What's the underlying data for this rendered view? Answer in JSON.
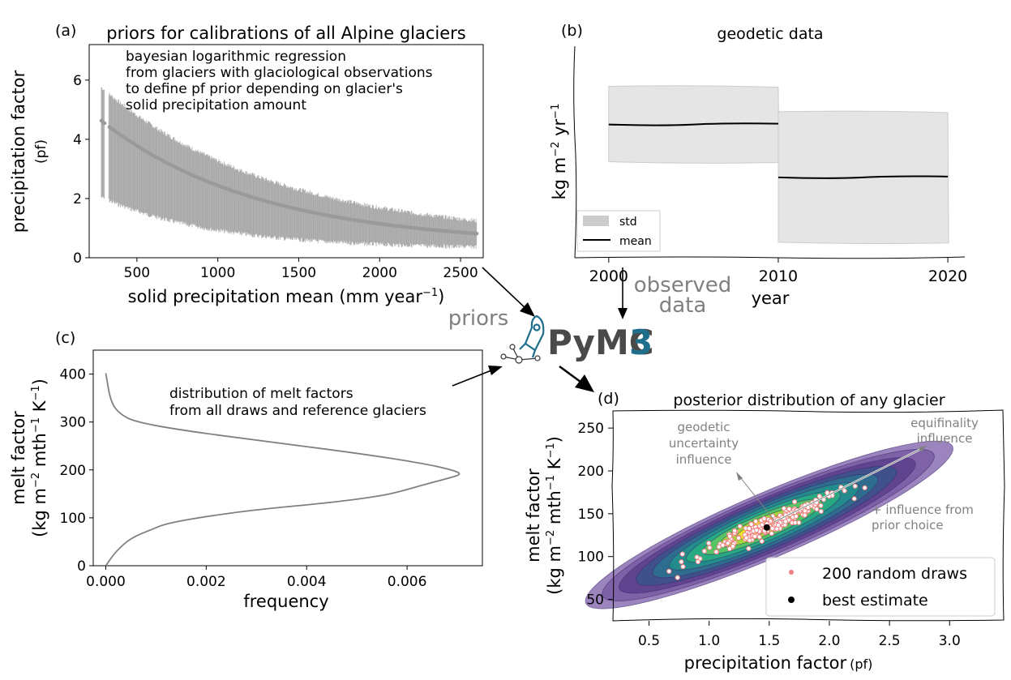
{
  "chart_data": [
    {
      "panel": "(a)",
      "type": "scatter",
      "title": "priors for calibrations of all Alpine glaciers",
      "xlabel": "solid precipitation mean (mm year",
      "xlabel_sup": "−1",
      "xlabel_close": ")",
      "ylabel": "precipitation factor",
      "ylabel_sub": "(pf)",
      "annotation": [
        "bayesian logarithmic regression",
        "from glaciers with glaciological observations",
        "to define pf prior depending on glacier's",
        "solid precipitation amount"
      ],
      "xlim": [
        205,
        2640
      ],
      "ylim": [
        0,
        7.2
      ],
      "xticks": [
        "500",
        "1000",
        "1500",
        "2000",
        "2500"
      ],
      "yticks": [
        "0",
        "2",
        "4",
        "6"
      ],
      "error_bar_model": {
        "center": "5.6*exp(-x/980)+0.42",
        "upper": "6.6*exp(-x/1080)+0.66",
        "lower": "2.6*exp(-x/700)+0.3"
      },
      "mean_points": [
        {
          "x": 280,
          "y": 4.6
        },
        {
          "x": 340,
          "y": 4.18
        },
        {
          "x": 400,
          "y": 3.87
        },
        {
          "x": 460,
          "y": 3.58
        },
        {
          "x": 520,
          "y": 3.28
        },
        {
          "x": 600,
          "y": 2.95
        },
        {
          "x": 700,
          "y": 2.55
        },
        {
          "x": 800,
          "y": 2.2
        },
        {
          "x": 1000,
          "y": 1.65
        },
        {
          "x": 1200,
          "y": 1.35
        },
        {
          "x": 1500,
          "y": 1.05
        },
        {
          "x": 1800,
          "y": 0.85
        },
        {
          "x": 2100,
          "y": 0.72
        },
        {
          "x": 2400,
          "y": 0.64
        },
        {
          "x": 2600,
          "y": 0.6
        }
      ],
      "color": "#808080"
    },
    {
      "panel": "(b)",
      "type": "area",
      "title": "geodetic data",
      "xlabel": "year",
      "ylabel": "kg m",
      "ylabel_sup1": "−2",
      "ylabel_mid": " yr",
      "ylabel_sup2": "−1",
      "xlim": [
        1998,
        2021
      ],
      "xticks": [
        "2000",
        "2010",
        "2020"
      ],
      "series": [
        {
          "name": "mean",
          "segments": [
            {
              "x": [
                2000,
                2010
              ],
              "y": 0.63
            },
            {
              "x": [
                2010,
                2020
              ],
              "y": 0.38
            }
          ]
        },
        {
          "name": "std",
          "segments": [
            {
              "x": [
                2000,
                2010
              ],
              "lo": 0.45,
              "hi": 0.81
            },
            {
              "x": [
                2010,
                2020
              ],
              "lo": 0.07,
              "hi": 0.69
            }
          ]
        }
      ],
      "legend": [
        "std",
        "mean"
      ],
      "legend_position": "lower-left",
      "ylim": [
        0,
        1
      ],
      "fill_color": "#e5e5e5",
      "line_color": "#000000"
    },
    {
      "panel": "(c)",
      "type": "line",
      "xlabel": "frequency",
      "ylabel": "melt factor",
      "ylabel_sub": "(kg m",
      "ylabel_sub_sup1": "−2",
      "ylabel_sub_mid": " mth",
      "ylabel_sub_sup2": "−1",
      "ylabel_sub_mid2": " K",
      "ylabel_sub_sup3": "−1",
      "ylabel_sub_close": ")",
      "annotation": [
        "distribution of melt factors",
        "from all draws and reference glaciers"
      ],
      "xlim": [
        -0.00025,
        0.0075
      ],
      "ylim": [
        0,
        450
      ],
      "xticks": [
        "0.000",
        "0.002",
        "0.004",
        "0.006"
      ],
      "yticks": [
        "0",
        "100",
        "200",
        "300",
        "400"
      ],
      "points": [
        {
          "x": 0.0,
          "y": 402
        },
        {
          "x": 0.0001,
          "y": 340
        },
        {
          "x": 0.0003,
          "y": 315
        },
        {
          "x": 0.0006,
          "y": 300
        },
        {
          "x": 0.0015,
          "y": 283
        },
        {
          "x": 0.003,
          "y": 262
        },
        {
          "x": 0.005,
          "y": 235
        },
        {
          "x": 0.0063,
          "y": 214
        },
        {
          "x": 0.0069,
          "y": 200
        },
        {
          "x": 0.0071,
          "y": 191
        },
        {
          "x": 0.0068,
          "y": 182
        },
        {
          "x": 0.0063,
          "y": 168
        },
        {
          "x": 0.0059,
          "y": 156
        },
        {
          "x": 0.0055,
          "y": 146
        },
        {
          "x": 0.0045,
          "y": 132
        },
        {
          "x": 0.003,
          "y": 117
        },
        {
          "x": 0.002,
          "y": 103
        },
        {
          "x": 0.0012,
          "y": 88
        },
        {
          "x": 0.0009,
          "y": 75
        },
        {
          "x": 0.0005,
          "y": 58
        },
        {
          "x": 0.0002,
          "y": 30
        },
        {
          "x": 0.0,
          "y": 0
        }
      ],
      "color": "#808080"
    },
    {
      "panel": "(d)",
      "type": "scatter",
      "title": "posterior distribution of any glacier",
      "xlabel": "precipitation factor",
      "xlabel_small": "(pf)",
      "ylabel": "melt factor",
      "ylabel_sub": "(kg m",
      "ylabel_sub_sup1": "−2",
      "ylabel_sub_mid": " mth",
      "ylabel_sub_sup2": "−1",
      "ylabel_sub_mid2": " K",
      "ylabel_sub_sup3": "−1",
      "ylabel_sub_close": ")",
      "xlim": [
        0.2,
        3.45
      ],
      "ylim": [
        25,
        270
      ],
      "xticks": [
        "0.5",
        "1.0",
        "1.5",
        "2.0",
        "2.5",
        "3.0"
      ],
      "yticks": [
        "50",
        "100",
        "150",
        "200",
        "250"
      ],
      "density": {
        "center": [
          1.5,
          137
        ],
        "slope": 60,
        "levels": [
          "#8b6fb3",
          "#7a5aa5",
          "#5a3f8c",
          "#3b528b",
          "#2c728e",
          "#21918c",
          "#28ae80",
          "#5ec962",
          "#addc30",
          "#fde725"
        ]
      },
      "annotations": [
        {
          "lines": [
            "geodetic",
            "uncertainty",
            "influence"
          ]
        },
        {
          "lines": [
            "equifinality",
            "influence"
          ]
        },
        {
          "lines": [
            "+ influence from",
            "prior choice"
          ]
        }
      ],
      "legend": [
        "200 random draws",
        "best estimate"
      ],
      "legend_position": "lower-right",
      "random_draws_color": "#f08080",
      "best_estimate": {
        "x": 1.48,
        "y": 134
      }
    }
  ],
  "labels": {
    "panel_a": "(a)",
    "panel_b": "(b)",
    "panel_c": "(c)",
    "panel_d": "(d)",
    "priors": "priors",
    "observed_data": [
      "observed",
      "data"
    ],
    "logo_text_a": "PyMC",
    "logo_text_b": "3"
  },
  "colors": {
    "logo_gray": "#4a4a4a",
    "logo_blue": "#1f6e8c",
    "label_gray": "#808080"
  }
}
